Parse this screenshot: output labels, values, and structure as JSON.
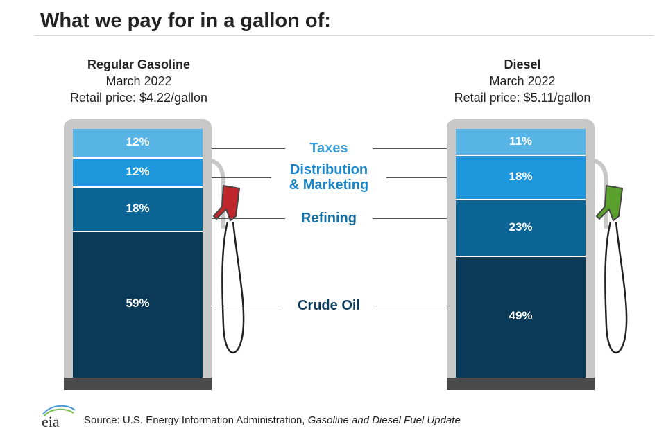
{
  "title": "What we pay for in a gallon of:",
  "chart_data": {
    "type": "bar",
    "stacked": true,
    "categories": [
      "Taxes",
      "Distribution & Marketing",
      "Refining",
      "Crude Oil"
    ],
    "category_label_lines": [
      [
        "Taxes"
      ],
      [
        "Distribution",
        "& Marketing"
      ],
      [
        "Refining"
      ],
      [
        "Crude Oil"
      ]
    ],
    "category_colors": [
      "#57b4e5",
      "#1f97dc",
      "#0b6494",
      "#0b3a58"
    ],
    "category_label_colors": [
      "#3a9fd8",
      "#1a86c9",
      "#156fa3",
      "#0c3c5e"
    ],
    "units": "percent",
    "series": [
      {
        "name": "Regular Gasoline",
        "period": "March 2022",
        "retail_price": "Retail price: $4.22/gallon",
        "values": [
          12,
          12,
          18,
          59
        ],
        "value_labels": [
          "12%",
          "12%",
          "18%",
          "59%"
        ],
        "nozzle_color": "#c0272d"
      },
      {
        "name": "Diesel",
        "period": "March 2022",
        "retail_price": "Retail price: $5.11/gallon",
        "values": [
          11,
          18,
          23,
          49
        ],
        "value_labels": [
          "11%",
          "18%",
          "23%",
          "49%"
        ],
        "nozzle_color": "#5aa02c"
      }
    ]
  },
  "source": {
    "logo_text": "eia",
    "prefix": "Source: U.S. Energy Information Administration, ",
    "title": "Gasoline and Diesel Fuel Update"
  }
}
